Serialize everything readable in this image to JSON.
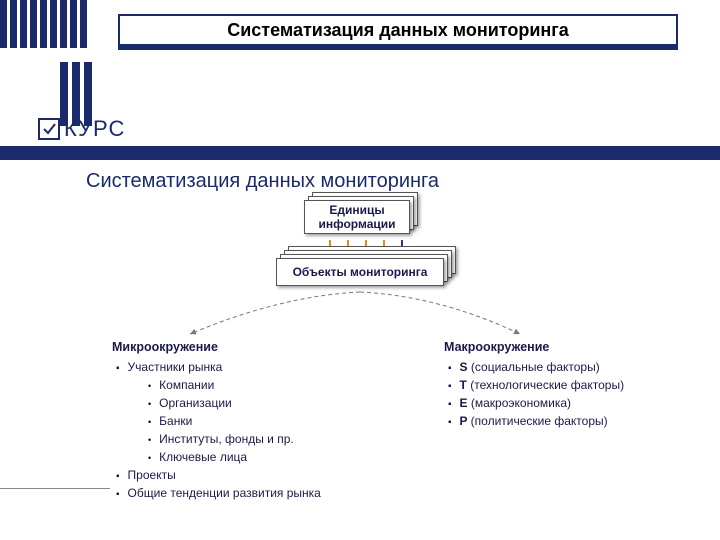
{
  "colors": {
    "navy": "#1a2a6c",
    "text": "#1a1a4a",
    "arrow_orange": "#d98e2b",
    "arrow_navy": "#2a3a7c",
    "bg": "#ffffff"
  },
  "slide_title": "Систематизация данных мониторинга",
  "logo": {
    "text": "КУРС",
    "check": "✓"
  },
  "section_title": "Систематизация данных мониторинга",
  "box1": {
    "label": "Единицы\nинформации",
    "stack_count": 3
  },
  "box2": {
    "label": "Объекты мониторинга",
    "stack_count": 4
  },
  "arrows_row": {
    "count": 5,
    "colors": [
      "#d98e2b",
      "#d98e2b",
      "#d98e2b",
      "#d98e2b",
      "#2a3a7c"
    ]
  },
  "left": {
    "title": "Микроокружение",
    "items": [
      {
        "label": "Участники рынка",
        "sub": [
          "Компании",
          "Организации",
          "Банки",
          "Институты, фонды и пр.",
          "Ключевые лица"
        ]
      },
      {
        "label": "Проекты"
      },
      {
        "label": "Общие тенденции развития рынка"
      }
    ]
  },
  "right": {
    "title": "Макроокружение",
    "items": [
      {
        "code": "S",
        "label": "(социальные факторы)"
      },
      {
        "code": "T",
        "label": "(технологические факторы)"
      },
      {
        "code": "E",
        "label": "(макроэкономика)"
      },
      {
        "code": "P",
        "label": "(политические факторы)"
      }
    ]
  }
}
